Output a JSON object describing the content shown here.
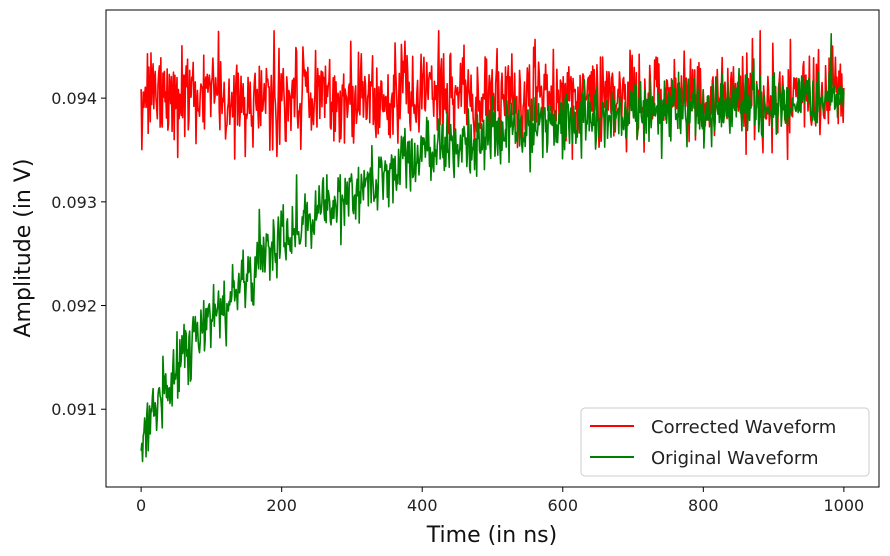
{
  "chart_data": {
    "type": "line",
    "xlabel": "Time (in ns)",
    "ylabel": "Amplitude (in V)",
    "xlim": [
      -50,
      1050
    ],
    "ylim": [
      0.09025,
      0.09485
    ],
    "xticks": [
      0,
      200,
      400,
      600,
      800,
      1000
    ],
    "xtick_labels": [
      "0",
      "200",
      "400",
      "600",
      "800",
      "1000"
    ],
    "yticks": [
      0.091,
      0.092,
      0.093,
      0.094
    ],
    "ytick_labels": [
      "0.091",
      "0.092",
      "0.093",
      "0.094"
    ],
    "grid": false,
    "legend_position": "lower-right",
    "n_points": 1000,
    "x": {
      "start": 0,
      "end": 1000
    },
    "series": [
      {
        "name": "Corrected Waveform",
        "color": "#ff0000",
        "model": "constant",
        "level": 0.094,
        "noise_std": 0.00022,
        "approx_range": [
          0.09325,
          0.09465
        ]
      },
      {
        "name": "Original Waveform",
        "color": "#008000",
        "model": "exponential_recovery",
        "start_value": 0.0907,
        "asymptote": 0.094,
        "time_constant_ns": 230,
        "noise_std": 0.00022,
        "approx_range": [
          0.09048,
          0.09462
        ]
      }
    ]
  }
}
